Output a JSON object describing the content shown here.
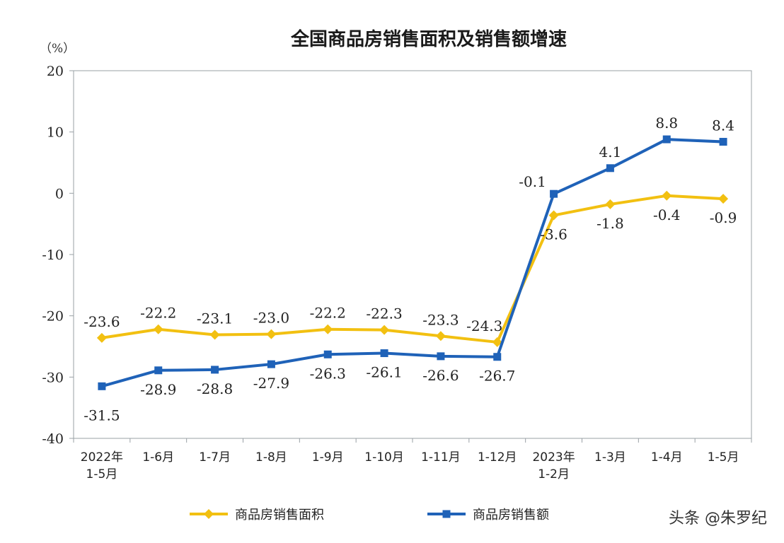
{
  "chart_data": {
    "type": "line",
    "title": "全国商品房销售面积及销售额增速",
    "unit": "（%）",
    "ylim": [
      -40,
      20
    ],
    "yticks": [
      20,
      10,
      0,
      -10,
      -20,
      -30,
      -40
    ],
    "categories": [
      [
        "2022年",
        "1-5月"
      ],
      [
        "1-6月"
      ],
      [
        "1-7月"
      ],
      [
        "1-8月"
      ],
      [
        "1-9月"
      ],
      [
        "1-10月"
      ],
      [
        "1-11月"
      ],
      [
        "1-12月"
      ],
      [
        "2023年",
        "1-2月"
      ],
      [
        "1-3月"
      ],
      [
        "1-4月"
      ],
      [
        "1-5月"
      ]
    ],
    "series": [
      {
        "name": "商品房销售面积",
        "color": "#f2c011",
        "marker": "diamond",
        "values": [
          -23.6,
          -22.2,
          -23.1,
          -23.0,
          -22.2,
          -22.3,
          -23.3,
          -24.3,
          -3.6,
          -1.8,
          -0.4,
          -0.9
        ],
        "labels": [
          "-23.6",
          "-22.2",
          "-23.1",
          "-23.0",
          "-22.2",
          "-22.3",
          "-23.3",
          "-24.3",
          "-3.6",
          "-1.8",
          "-0.4",
          "-0.9"
        ],
        "label_pos": [
          "above",
          "above",
          "above",
          "above",
          "above",
          "above",
          "above",
          "above",
          "below",
          "below",
          "below",
          "below"
        ]
      },
      {
        "name": "商品房销售额",
        "color": "#1f62b8",
        "marker": "square",
        "values": [
          -31.5,
          -28.9,
          -28.8,
          -27.9,
          -26.3,
          -26.1,
          -26.6,
          -26.7,
          -0.1,
          4.1,
          8.8,
          8.4
        ],
        "labels": [
          "-31.5",
          "-28.9",
          "-28.8",
          "-27.9",
          "-26.3",
          "-26.1",
          "-26.6",
          "-26.7",
          "-0.1",
          "4.1",
          "8.8",
          "8.4"
        ],
        "label_pos": [
          "below",
          "below",
          "below",
          "below",
          "below",
          "below",
          "below",
          "below",
          "above",
          "above",
          "above",
          "above"
        ]
      }
    ],
    "legend_position": "bottom",
    "grid": false
  },
  "watermark": "头条 @朱罗纪"
}
